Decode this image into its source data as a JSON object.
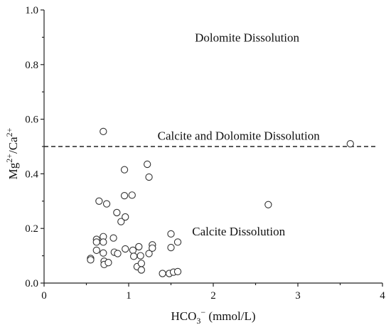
{
  "chart_data": {
    "type": "scatter",
    "xlabel": {
      "base": "HCO",
      "sub": "3",
      "sup": "−",
      "unit": " (mmol/L)"
    },
    "ylabel": {
      "a": "Mg",
      "a_sup": "2+",
      "sep": "/Ca",
      "b_sup": "2+"
    },
    "xlim": [
      0,
      4
    ],
    "ylim": [
      0,
      1.0
    ],
    "xticks": [
      "0",
      "1",
      "2",
      "3",
      "4"
    ],
    "yticks": [
      "0.0",
      "0.2",
      "0.4",
      "0.6",
      "0.8",
      "1.0"
    ],
    "reference_line": {
      "y": 0.5,
      "style": "dashed"
    },
    "annotations": [
      {
        "text": "Dolomite Dissolution",
        "x": 2.4,
        "y": 0.9
      },
      {
        "text": "Calcite and Dolomite Dissolution",
        "x": 2.3,
        "y": 0.54
      },
      {
        "text": "Calcite Dissolution",
        "x": 2.3,
        "y": 0.19
      }
    ],
    "points": [
      {
        "x": 0.55,
        "y": 0.09
      },
      {
        "x": 0.55,
        "y": 0.085
      },
      {
        "x": 0.62,
        "y": 0.16
      },
      {
        "x": 0.62,
        "y": 0.15
      },
      {
        "x": 0.62,
        "y": 0.12
      },
      {
        "x": 0.65,
        "y": 0.3
      },
      {
        "x": 0.7,
        "y": 0.555
      },
      {
        "x": 0.7,
        "y": 0.17
      },
      {
        "x": 0.7,
        "y": 0.15
      },
      {
        "x": 0.7,
        "y": 0.11
      },
      {
        "x": 0.71,
        "y": 0.08
      },
      {
        "x": 0.71,
        "y": 0.068
      },
      {
        "x": 0.74,
        "y": 0.29
      },
      {
        "x": 0.76,
        "y": 0.075
      },
      {
        "x": 0.82,
        "y": 0.165
      },
      {
        "x": 0.83,
        "y": 0.113
      },
      {
        "x": 0.86,
        "y": 0.258
      },
      {
        "x": 0.87,
        "y": 0.108
      },
      {
        "x": 0.91,
        "y": 0.225
      },
      {
        "x": 0.95,
        "y": 0.415
      },
      {
        "x": 0.95,
        "y": 0.32
      },
      {
        "x": 0.96,
        "y": 0.242
      },
      {
        "x": 0.96,
        "y": 0.125
      },
      {
        "x": 1.04,
        "y": 0.322
      },
      {
        "x": 1.05,
        "y": 0.12
      },
      {
        "x": 1.06,
        "y": 0.098
      },
      {
        "x": 1.1,
        "y": 0.06
      },
      {
        "x": 1.12,
        "y": 0.133
      },
      {
        "x": 1.14,
        "y": 0.1
      },
      {
        "x": 1.15,
        "y": 0.072
      },
      {
        "x": 1.15,
        "y": 0.048
      },
      {
        "x": 1.22,
        "y": 0.435
      },
      {
        "x": 1.24,
        "y": 0.388
      },
      {
        "x": 1.24,
        "y": 0.108
      },
      {
        "x": 1.28,
        "y": 0.14
      },
      {
        "x": 1.28,
        "y": 0.128
      },
      {
        "x": 1.4,
        "y": 0.035
      },
      {
        "x": 1.48,
        "y": 0.035
      },
      {
        "x": 1.5,
        "y": 0.18
      },
      {
        "x": 1.5,
        "y": 0.13
      },
      {
        "x": 1.53,
        "y": 0.04
      },
      {
        "x": 1.58,
        "y": 0.042
      },
      {
        "x": 1.58,
        "y": 0.15
      },
      {
        "x": 2.65,
        "y": 0.287
      },
      {
        "x": 3.62,
        "y": 0.51
      }
    ],
    "grid": false,
    "legend": "none"
  }
}
